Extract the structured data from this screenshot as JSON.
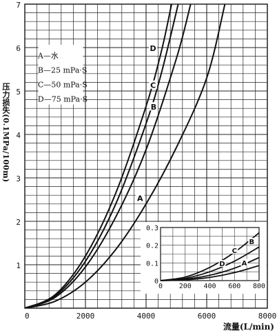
{
  "chart_data": [
    {
      "type": "line",
      "xlabel": "流量(L/min)",
      "ylabel": "压力损失(0.1MPa/100m)",
      "xlim": [
        0,
        8000
      ],
      "ylim": [
        0,
        7
      ],
      "x_ticks": [
        "0",
        "2000",
        "4000",
        "6000",
        "8000"
      ],
      "y_ticks": [
        "0",
        "1",
        "2",
        "3",
        "4",
        "5",
        "6",
        "7"
      ],
      "grid": true,
      "legend_position": "top-left",
      "legend": [
        "A—水",
        "B—25 mPa·S",
        "C—50 mPa·S",
        "D—75 mPa·S"
      ],
      "series": [
        {
          "name": "A",
          "x": [
            0,
            1000,
            2000,
            3000,
            4000,
            5000,
            6000,
            6600
          ],
          "y": [
            0,
            0.16,
            0.6,
            1.35,
            2.4,
            3.7,
            5.3,
            7.0
          ]
        },
        {
          "name": "B",
          "x": [
            0,
            1000,
            2000,
            3000,
            4000,
            5000,
            5470
          ],
          "y": [
            0,
            0.25,
            0.95,
            2.1,
            3.65,
            5.75,
            7.0
          ]
        },
        {
          "name": "C",
          "x": [
            0,
            1000,
            2000,
            3000,
            4000,
            4500,
            5060
          ],
          "y": [
            0,
            0.28,
            1.08,
            2.4,
            4.25,
            5.4,
            7.0
          ]
        },
        {
          "name": "D",
          "x": [
            0,
            1000,
            2000,
            3000,
            4000,
            4500,
            4840
          ],
          "y": [
            0,
            0.31,
            1.2,
            2.65,
            4.65,
            5.9,
            7.0
          ]
        }
      ]
    },
    {
      "type": "line",
      "inset": true,
      "xlim": [
        0,
        800
      ],
      "ylim": [
        0,
        0.3
      ],
      "x_ticks": [
        "0",
        "200",
        "400",
        "600",
        "800"
      ],
      "y_ticks": [
        "0",
        "0.1",
        "0.2",
        "0.3"
      ],
      "grid": true,
      "series": [
        {
          "name": "A",
          "x": [
            0,
            200,
            400,
            600,
            800
          ],
          "y": [
            0,
            0.004,
            0.018,
            0.045,
            0.085
          ]
        },
        {
          "name": "B",
          "x": [
            0,
            200,
            400,
            600,
            800
          ],
          "y": [
            0,
            0.02,
            0.075,
            0.16,
            0.27
          ]
        },
        {
          "name": "C",
          "x": [
            0,
            200,
            400,
            600,
            800
          ],
          "y": [
            0,
            0.013,
            0.05,
            0.11,
            0.19
          ]
        },
        {
          "name": "D",
          "x": [
            0,
            200,
            400,
            600,
            800
          ],
          "y": [
            0,
            0.008,
            0.03,
            0.07,
            0.13
          ]
        }
      ],
      "series_labels": [
        "C",
        "B",
        "D",
        "A"
      ]
    }
  ]
}
